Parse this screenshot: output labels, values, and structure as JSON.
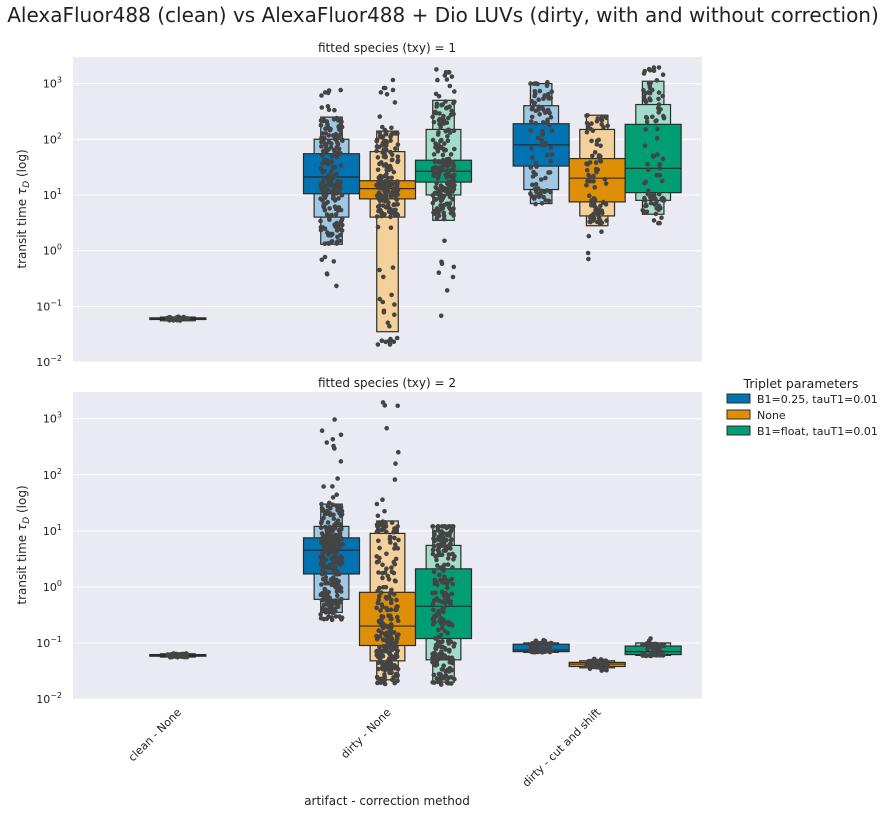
{
  "title": "AlexaFluor488 (clean) vs AlexaFluor488 + Dio LUVs (dirty, with and without correction)",
  "chart_data": {
    "type": "boxen",
    "categories": [
      "clean - None",
      "dirty - None",
      "dirty - cut and shift"
    ],
    "xlabel": "artifact - correction method",
    "ylabel": "transit time τ_D (log)",
    "ylabel_main": "transit time ",
    "ylabel_sym": "τ",
    "ylabel_sub": "D",
    "ylabel_tail": " (log)",
    "yscale": "log",
    "ylim": [
      0.01,
      3000
    ],
    "yticks": [
      {
        "v": 0.01,
        "m": "10",
        "e": "−2"
      },
      {
        "v": 0.1,
        "m": "10",
        "e": "−1"
      },
      {
        "v": 1,
        "m": "10",
        "e": "0"
      },
      {
        "v": 10,
        "m": "10",
        "e": "1"
      },
      {
        "v": 100,
        "m": "10",
        "e": "2"
      },
      {
        "v": 1000,
        "m": "10",
        "e": "3"
      }
    ],
    "grid": true,
    "legend": {
      "title": "Triplet parameters",
      "placement": "right",
      "entries": [
        {
          "name": "B1=0.25, tauT1=0.01",
          "color": "#0173b2",
          "light": "#9ec8e3"
        },
        {
          "name": "None",
          "color": "#de8f05",
          "light": "#f4d09a"
        },
        {
          "name": "B1=float, tauT1=0.01",
          "color": "#029e73",
          "light": "#a4dccb"
        }
      ]
    },
    "panels": [
      {
        "title": "fitted species (txy) = 1",
        "groups": [
          {
            "category": 0,
            "hue": 1,
            "n": 40,
            "q": [
              0.055,
              0.058,
              0.06,
              0.062,
              0.064
            ],
            "min": 0.054,
            "max": 0.065
          },
          {
            "category": 1,
            "hue": 0,
            "n": 200,
            "q": [
              1.3,
              4,
              10.5,
              21,
              55,
              100,
              250
            ],
            "min": 0.22,
            "max": 780
          },
          {
            "category": 1,
            "hue": 1,
            "n": 190,
            "q": [
              0.035,
              4,
              8.5,
              13,
              18,
              60,
              140
            ],
            "min": 0.02,
            "max": 1450
          },
          {
            "category": 1,
            "hue": 2,
            "n": 200,
            "q": [
              3.5,
              10,
              17,
              42,
              150,
              500
            ],
            "min": 0.04,
            "max": 2000
          },
          {
            "category": 2,
            "hue": 0,
            "n": 90,
            "q": [
              7,
              12.5,
              33,
              190,
              400,
              1000
            ],
            "min": 2,
            "max": 1100
          },
          {
            "category": 2,
            "hue": 1,
            "n": 90,
            "q": [
              2.8,
              4.2,
              7.5,
              20,
              45,
              150,
              270
            ],
            "min": 0.65,
            "max": 2000
          },
          {
            "category": 2,
            "hue": 2,
            "n": 90,
            "q": [
              4.5,
              8,
              11,
              30,
              185,
              420,
              1100
            ],
            "min": 1.6,
            "max": 2000
          }
        ]
      },
      {
        "title": "fitted species (txy) = 2",
        "groups": [
          {
            "category": 0,
            "hue": 1,
            "n": 40,
            "q": [
              0.056,
              0.058,
              0.06,
              0.062,
              0.064
            ],
            "min": 0.055,
            "max": 0.065
          },
          {
            "category": 1,
            "hue": 0,
            "n": 260,
            "q": [
              0.35,
              0.6,
              1.7,
              4.5,
              7.5,
              12,
              30
            ],
            "min": 0.25,
            "max": 1000
          },
          {
            "category": 1,
            "hue": 1,
            "n": 260,
            "q": [
              0.022,
              0.048,
              0.09,
              0.2,
              0.8,
              9,
              15
            ],
            "min": 0.018,
            "max": 2000
          },
          {
            "category": 1,
            "hue": 2,
            "n": 230,
            "q": [
              0.02,
              0.05,
              0.12,
              0.45,
              2.1,
              5.5,
              12
            ],
            "min": 0.018,
            "max": 12
          },
          {
            "category": 2,
            "hue": 0,
            "n": 60,
            "q": [
              0.068,
              0.07,
              0.075,
              0.095,
              0.1
            ],
            "min": 0.065,
            "max": 0.12
          },
          {
            "category": 2,
            "hue": 1,
            "n": 50,
            "q": [
              0.036,
              0.038,
              0.042,
              0.045,
              0.048
            ],
            "min": 0.032,
            "max": 0.052
          },
          {
            "category": 2,
            "hue": 2,
            "n": 60,
            "q": [
              0.06,
              0.062,
              0.07,
              0.088,
              0.1
            ],
            "min": 0.058,
            "max": 0.125
          }
        ]
      }
    ]
  }
}
